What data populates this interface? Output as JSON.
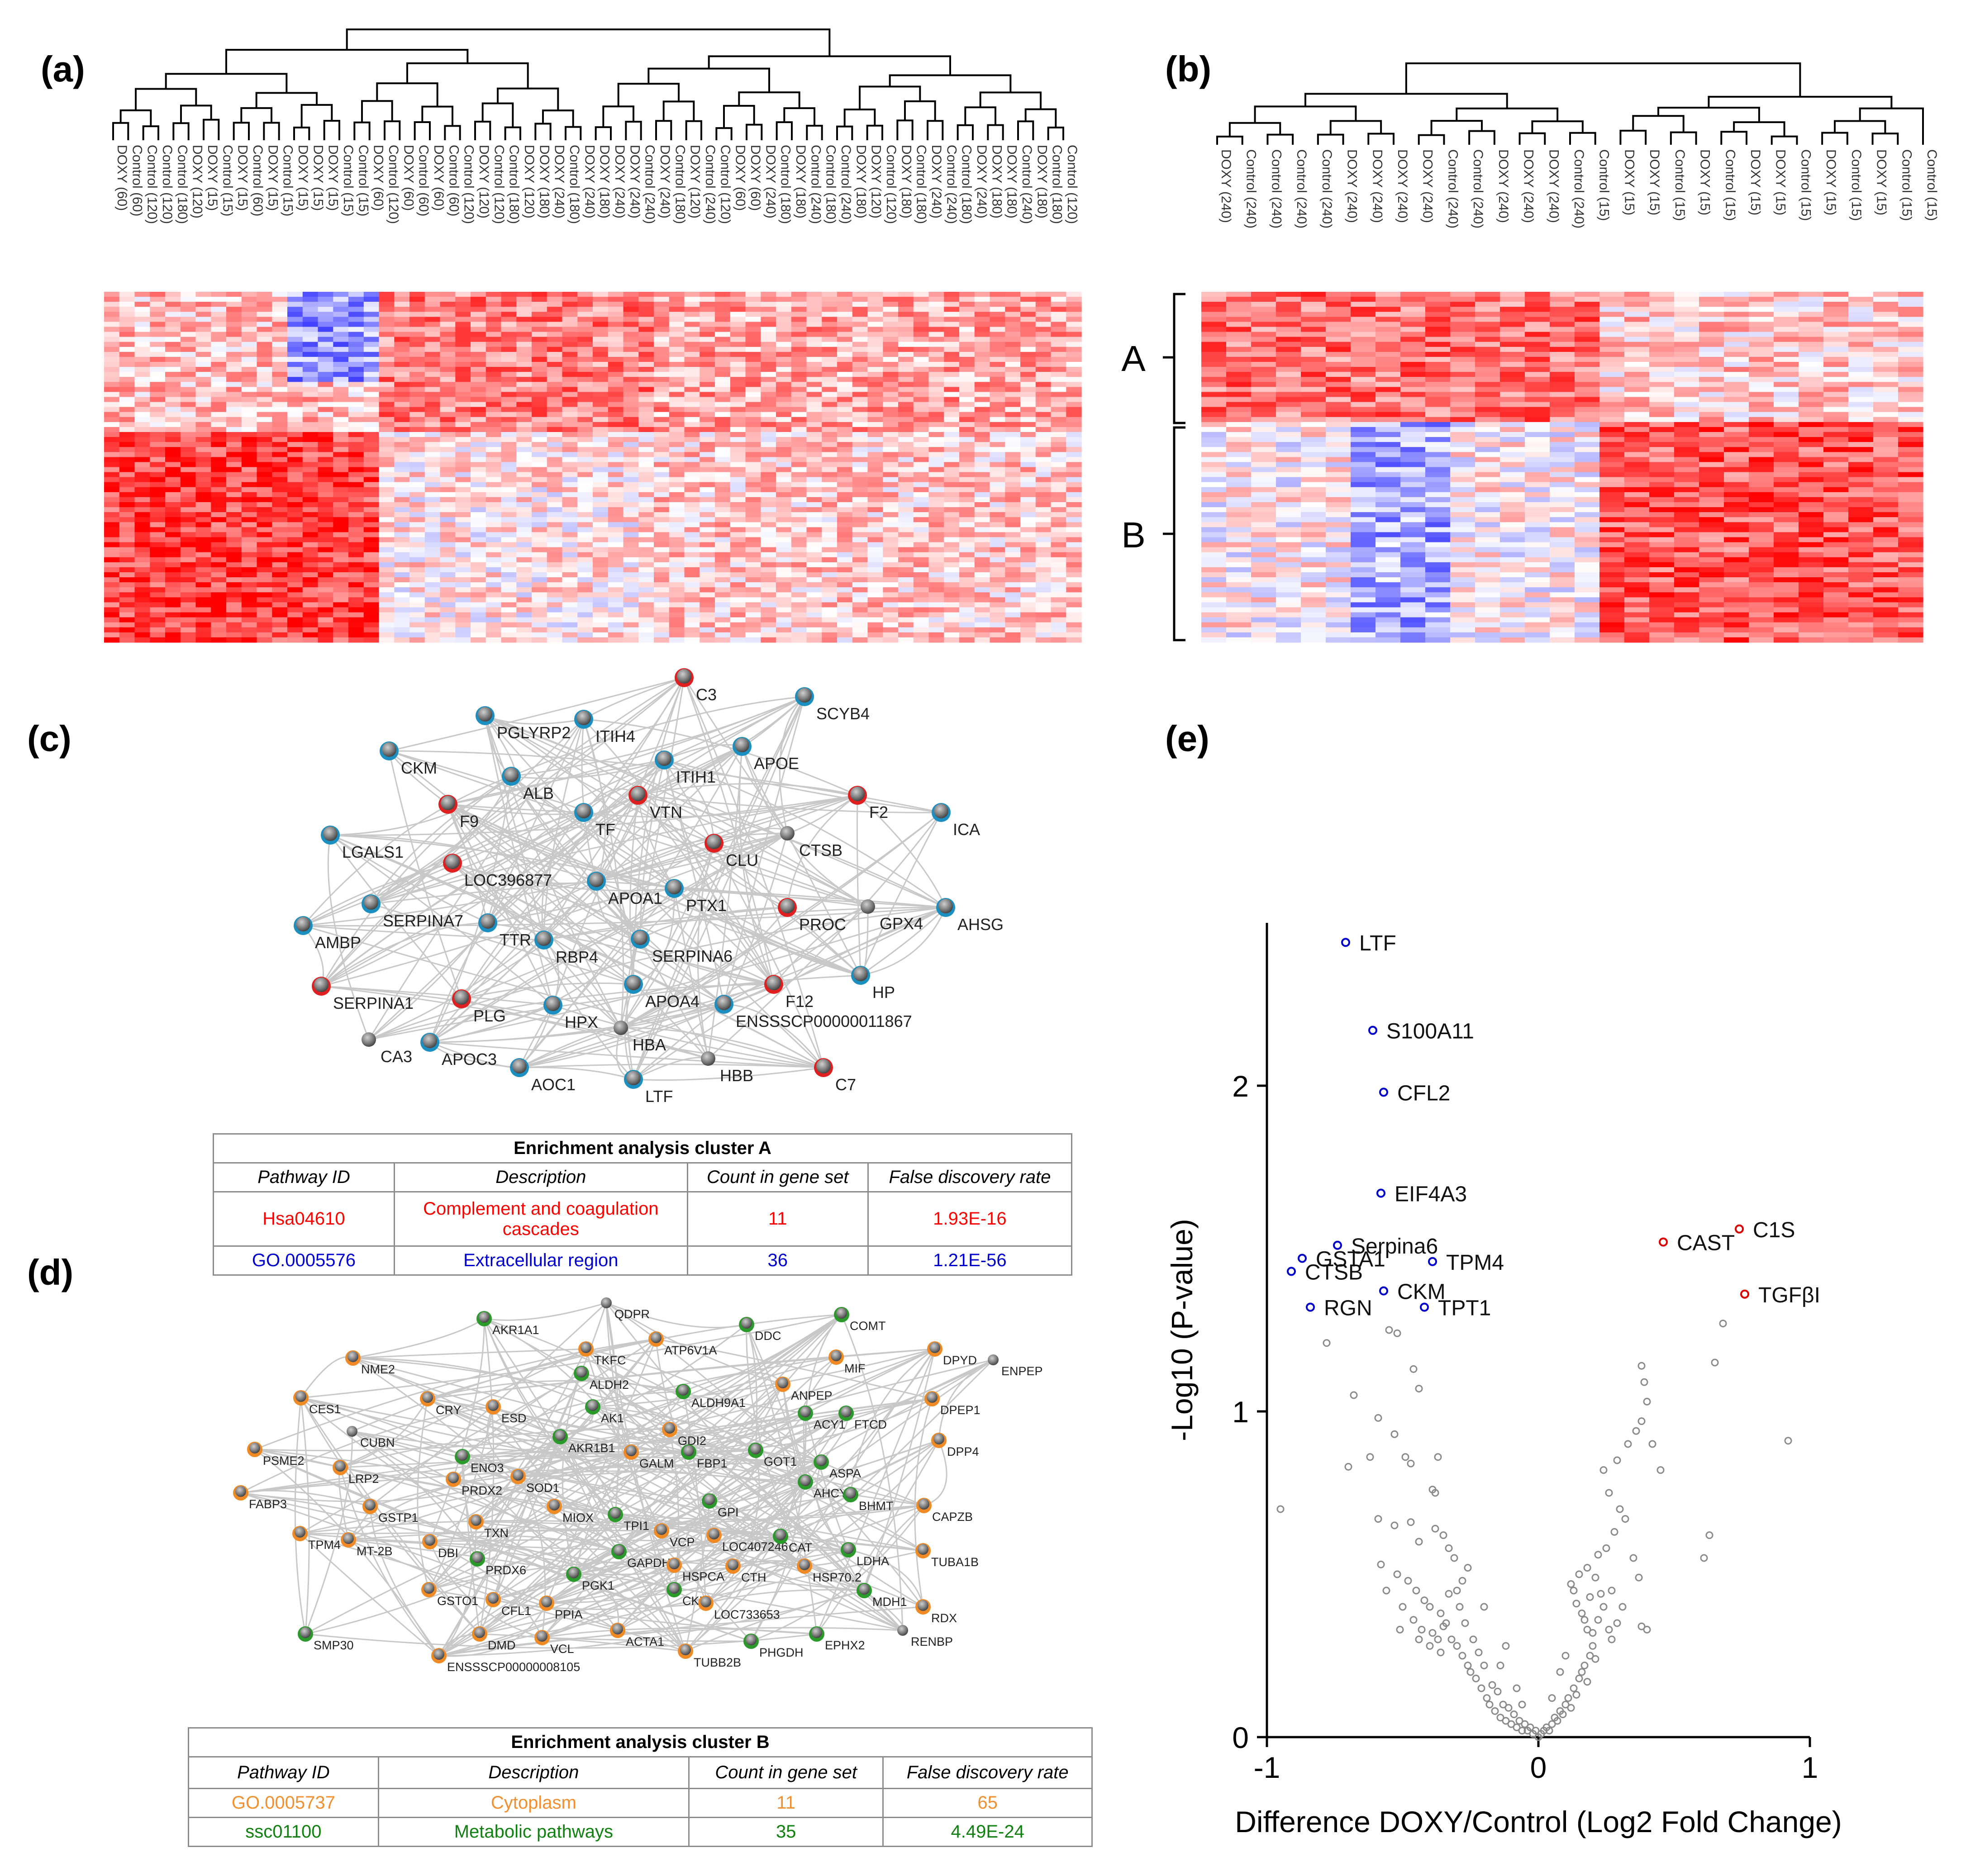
{
  "panels": {
    "a": {
      "label": "(a)"
    },
    "b": {
      "label": "(b)",
      "cluster_labels": [
        "A",
        "B"
      ]
    },
    "c": {
      "label": "(c)"
    },
    "d": {
      "label": "(d)"
    },
    "e": {
      "label": "(e)"
    }
  },
  "dendro_a_leaves": [
    "DOXY (60)",
    "Control (60)",
    "Control (120)",
    "Control (120)",
    "Control (180)",
    "DOXY (120)",
    "DOXY (15)",
    "Control (15)",
    "DOXY (15)",
    "Control (60)",
    "DOXY (15)",
    "Control (15)",
    "DOXY (15)",
    "DOXY (15)",
    "DOXY (15)",
    "Control (15)",
    "Control (15)",
    "DOXY (60)",
    "Control (120)",
    "DOXY (60)",
    "Control (60)",
    "DOXY (60)",
    "Control (60)",
    "Control (120)",
    "DOXY (120)",
    "Control (120)",
    "Control (180)",
    "DOXY (120)",
    "DOXY (180)",
    "DOXY (240)",
    "Control (180)",
    "DOXY (240)",
    "DOXY (180)",
    "DOXY (240)",
    "DOXY (240)",
    "Control (240)",
    "DOXY (240)",
    "Control (180)",
    "DOXY (120)",
    "Control (240)",
    "Control (120)",
    "DOXY (60)",
    "DOXY (60)",
    "DOXY (240)",
    "Control (180)",
    "DOXY (180)",
    "Control (240)",
    "Control (180)",
    "Control (240)",
    "DOXY (180)",
    "DOXY (120)",
    "Control (120)",
    "DOXY (180)",
    "Control (180)",
    "DOXY (240)",
    "Control (240)",
    "Control (180)",
    "DOXY (240)",
    "DOXY (180)",
    "DOXY (180)",
    "Control (240)",
    "DOXY (180)",
    "Control (180)",
    "Control (120)"
  ],
  "dendro_b_leaves": [
    "DOXY (240)",
    "Control (240)",
    "Control (240)",
    "Control (240)",
    "Control (240)",
    "DOXY (240)",
    "DOXY (240)",
    "DOXY (240)",
    "DOXY (240)",
    "Control (240)",
    "Control (240)",
    "DOXY (240)",
    "DOXY (240)",
    "DOXY (240)",
    "Control (240)",
    "Control (15)",
    "DOXY (15)",
    "DOXY (15)",
    "Control (15)",
    "DOXY (15)",
    "Control (15)",
    "DOXY (15)",
    "DOXY (15)",
    "Control (15)",
    "DOXY (15)",
    "Control (15)",
    "DOXY (15)",
    "Control (15)",
    "Control (15)"
  ],
  "network_c": {
    "nodes": [
      {
        "id": "C3",
        "ring": "red"
      },
      {
        "id": "SCYB4",
        "ring": "blue"
      },
      {
        "id": "PGLYRP2",
        "ring": "blue"
      },
      {
        "id": "ITIH4",
        "ring": "blue"
      },
      {
        "id": "CKM",
        "ring": "blue"
      },
      {
        "id": "APOE",
        "ring": "blue"
      },
      {
        "id": "ITIH1",
        "ring": "blue"
      },
      {
        "id": "ALB",
        "ring": "blue"
      },
      {
        "id": "F9",
        "ring": "red"
      },
      {
        "id": "VTN",
        "ring": "red"
      },
      {
        "id": "TF",
        "ring": "blue"
      },
      {
        "id": "F2",
        "ring": "red"
      },
      {
        "id": "ICA",
        "ring": "blue"
      },
      {
        "id": "LGALS1",
        "ring": "blue"
      },
      {
        "id": "CTSB",
        "ring": "none"
      },
      {
        "id": "CLU",
        "ring": "red"
      },
      {
        "id": "LOC396877",
        "ring": "red"
      },
      {
        "id": "APOA1",
        "ring": "blue"
      },
      {
        "id": "PTX1",
        "ring": "blue"
      },
      {
        "id": "AMBP",
        "ring": "blue"
      },
      {
        "id": "SERPINA7",
        "ring": "blue"
      },
      {
        "id": "TTR",
        "ring": "blue"
      },
      {
        "id": "RBP4",
        "ring": "blue"
      },
      {
        "id": "SERPINA6",
        "ring": "blue"
      },
      {
        "id": "PROC",
        "ring": "red"
      },
      {
        "id": "GPX4",
        "ring": "none"
      },
      {
        "id": "AHSG",
        "ring": "blue"
      },
      {
        "id": "SERPINA1",
        "ring": "red"
      },
      {
        "id": "PLG",
        "ring": "red"
      },
      {
        "id": "HPX",
        "ring": "blue"
      },
      {
        "id": "APOA4",
        "ring": "blue"
      },
      {
        "id": "F12",
        "ring": "red"
      },
      {
        "id": "HP",
        "ring": "blue"
      },
      {
        "id": "HBA",
        "ring": "none"
      },
      {
        "id": "ENSSSCP00000011867",
        "ring": "blue"
      },
      {
        "id": "CA3",
        "ring": "none"
      },
      {
        "id": "APOC3",
        "ring": "blue"
      },
      {
        "id": "HBB",
        "ring": "none"
      },
      {
        "id": "AOC1",
        "ring": "blue"
      },
      {
        "id": "LTF",
        "ring": "blue"
      },
      {
        "id": "C7",
        "ring": "red"
      }
    ]
  },
  "network_d": {
    "nodes": [
      {
        "id": "AKR1A1",
        "ring": "green"
      },
      {
        "id": "QDPR",
        "ring": "none"
      },
      {
        "id": "DDC",
        "ring": "green"
      },
      {
        "id": "COMT",
        "ring": "green"
      },
      {
        "id": "TKFC",
        "ring": "orange"
      },
      {
        "id": "ATP6V1A",
        "ring": "orange"
      },
      {
        "id": "MIF",
        "ring": "orange"
      },
      {
        "id": "DPYD",
        "ring": "orange"
      },
      {
        "id": "NME2",
        "ring": "orange"
      },
      {
        "id": "ALDH2",
        "ring": "green"
      },
      {
        "id": "ENPEP",
        "ring": "none"
      },
      {
        "id": "ALDH9A1",
        "ring": "green"
      },
      {
        "id": "ANPEP",
        "ring": "orange"
      },
      {
        "id": "DPEP1",
        "ring": "orange"
      },
      {
        "id": "CES1",
        "ring": "orange"
      },
      {
        "id": "CRY",
        "ring": "orange"
      },
      {
        "id": "ESD",
        "ring": "orange"
      },
      {
        "id": "AK1",
        "ring": "green"
      },
      {
        "id": "ACY1",
        "ring": "green"
      },
      {
        "id": "FTCD",
        "ring": "green"
      },
      {
        "id": "CUBN",
        "ring": "none"
      },
      {
        "id": "GDI2",
        "ring": "orange"
      },
      {
        "id": "PSME2",
        "ring": "orange"
      },
      {
        "id": "AKR1B1",
        "ring": "green"
      },
      {
        "id": "DPP4",
        "ring": "orange"
      },
      {
        "id": "ENO3",
        "ring": "green"
      },
      {
        "id": "GALM",
        "ring": "orange"
      },
      {
        "id": "FBP1",
        "ring": "green"
      },
      {
        "id": "GOT1",
        "ring": "green"
      },
      {
        "id": "ASPA",
        "ring": "green"
      },
      {
        "id": "LRP2",
        "ring": "orange"
      },
      {
        "id": "FABP3",
        "ring": "orange"
      },
      {
        "id": "PRDX2",
        "ring": "orange"
      },
      {
        "id": "SOD1",
        "ring": "orange"
      },
      {
        "id": "AHCY",
        "ring": "green"
      },
      {
        "id": "BHMT",
        "ring": "green"
      },
      {
        "id": "CAPZB",
        "ring": "orange"
      },
      {
        "id": "GSTP1",
        "ring": "orange"
      },
      {
        "id": "GPI",
        "ring": "green"
      },
      {
        "id": "MIOX",
        "ring": "orange"
      },
      {
        "id": "LOC407246",
        "ring": "orange"
      },
      {
        "id": "TPM4",
        "ring": "orange"
      },
      {
        "id": "TXN",
        "ring": "orange"
      },
      {
        "id": "TPI1",
        "ring": "green"
      },
      {
        "id": "VCP",
        "ring": "orange"
      },
      {
        "id": "CAT",
        "ring": "green"
      },
      {
        "id": "LDHA",
        "ring": "green"
      },
      {
        "id": "TUBA1B",
        "ring": "orange"
      },
      {
        "id": "MT-2B",
        "ring": "orange"
      },
      {
        "id": "DBI",
        "ring": "orange"
      },
      {
        "id": "PRDX6",
        "ring": "green"
      },
      {
        "id": "GAPDH",
        "ring": "green"
      },
      {
        "id": "HSPCA",
        "ring": "orange"
      },
      {
        "id": "CTH",
        "ring": "orange"
      },
      {
        "id": "HSP70.2",
        "ring": "orange"
      },
      {
        "id": "PGK1",
        "ring": "green"
      },
      {
        "id": "CKB",
        "ring": "green"
      },
      {
        "id": "LOC733653",
        "ring": "orange"
      },
      {
        "id": "MDH1",
        "ring": "green"
      },
      {
        "id": "RDX",
        "ring": "orange"
      },
      {
        "id": "GSTO1",
        "ring": "orange"
      },
      {
        "id": "CFL1",
        "ring": "orange"
      },
      {
        "id": "PPIA",
        "ring": "orange"
      },
      {
        "id": "RENBP",
        "ring": "none"
      },
      {
        "id": "DMD",
        "ring": "orange"
      },
      {
        "id": "VCL",
        "ring": "orange"
      },
      {
        "id": "ACTA1",
        "ring": "orange"
      },
      {
        "id": "PHGDH",
        "ring": "green"
      },
      {
        "id": "EPHX2",
        "ring": "green"
      },
      {
        "id": "SMP30",
        "ring": "green"
      },
      {
        "id": "ENSSSCP00000008105",
        "ring": "orange"
      },
      {
        "id": "TUBB2B",
        "ring": "orange"
      }
    ]
  },
  "table_a": {
    "caption": "Enrichment analysis cluster A",
    "headers": [
      "Pathway ID",
      "Description",
      "Count in gene set",
      "False discovery rate"
    ],
    "rows": [
      {
        "cells": [
          "Hsa04610",
          "Complement and coagulation cascades",
          "11",
          "1.93E-16"
        ],
        "color": "#ff0000"
      },
      {
        "cells": [
          "GO.0005576",
          "Extracellular region",
          "36",
          "1.21E-56"
        ],
        "color": "#0000d0"
      }
    ]
  },
  "table_b": {
    "caption": "Enrichment analysis cluster B",
    "headers": [
      "Pathway ID",
      "Description",
      "Count in gene set",
      "False discovery rate"
    ],
    "rows": [
      {
        "cells": [
          "GO.0005737",
          "Cytoplasm",
          "11",
          "65"
        ],
        "color": "#f09030"
      },
      {
        "cells": [
          "ssc01100",
          "Metabolic pathways",
          "35",
          "4.49E-24"
        ],
        "color": "#108010"
      }
    ]
  },
  "chart_data": {
    "type": "scatter",
    "title": "",
    "xlabel": "Difference DOXY/Control (Log2 Fold Change)",
    "ylabel": "-Log10 (P-value)",
    "xlim": [
      -1,
      1
    ],
    "ylim": [
      0,
      2.5
    ],
    "xticks": [
      "-1",
      "0",
      "1"
    ],
    "yticks": [
      "0",
      "1",
      "2"
    ],
    "labeled_points": [
      {
        "label": "LTF",
        "x": -0.71,
        "y": 2.44,
        "color": "#0000cc"
      },
      {
        "label": "S100A11",
        "x": -0.61,
        "y": 2.17,
        "color": "#0000cc"
      },
      {
        "label": "CFL2",
        "x": -0.57,
        "y": 1.98,
        "color": "#0000cc"
      },
      {
        "label": "EIF4A3",
        "x": -0.58,
        "y": 1.67,
        "color": "#0000cc"
      },
      {
        "label": "Serpina6",
        "x": -0.74,
        "y": 1.51,
        "color": "#0000cc"
      },
      {
        "label": "GSTA1",
        "x": -0.87,
        "y": 1.47,
        "color": "#0000cc"
      },
      {
        "label": "CTSB",
        "x": -0.91,
        "y": 1.43,
        "color": "#0000cc"
      },
      {
        "label": "TPM4",
        "x": -0.39,
        "y": 1.46,
        "color": "#0000cc"
      },
      {
        "label": "CKM",
        "x": -0.57,
        "y": 1.37,
        "color": "#0000cc"
      },
      {
        "label": "RGN",
        "x": -0.84,
        "y": 1.32,
        "color": "#0000cc"
      },
      {
        "label": "TPT1",
        "x": -0.42,
        "y": 1.32,
        "color": "#0000cc"
      },
      {
        "label": "C1S",
        "x": 0.74,
        "y": 1.56,
        "color": "#dd0000"
      },
      {
        "label": "CAST",
        "x": 0.46,
        "y": 1.52,
        "color": "#dd0000"
      },
      {
        "label": "TGFβI",
        "x": 0.76,
        "y": 1.36,
        "color": "#dd0000"
      }
    ],
    "other_points": [
      [
        -0.95,
        0.7
      ],
      [
        -0.78,
        1.21
      ],
      [
        -0.68,
        1.05
      ],
      [
        -0.59,
        0.98
      ],
      [
        -0.55,
        1.25
      ],
      [
        -0.52,
        1.24
      ],
      [
        -0.46,
        1.13
      ],
      [
        -0.44,
        1.07
      ],
      [
        -0.7,
        0.83
      ],
      [
        -0.62,
        0.86
      ],
      [
        -0.53,
        0.93
      ],
      [
        -0.49,
        0.86
      ],
      [
        -0.47,
        0.84
      ],
      [
        -0.37,
        0.86
      ],
      [
        -0.39,
        0.76
      ],
      [
        -0.38,
        0.75
      ],
      [
        -0.59,
        0.67
      ],
      [
        -0.53,
        0.65
      ],
      [
        -0.47,
        0.66
      ],
      [
        -0.44,
        0.6
      ],
      [
        -0.38,
        0.64
      ],
      [
        -0.35,
        0.62
      ],
      [
        -0.33,
        0.58
      ],
      [
        -0.31,
        0.55
      ],
      [
        -0.58,
        0.53
      ],
      [
        -0.52,
        0.5
      ],
      [
        -0.48,
        0.48
      ],
      [
        -0.45,
        0.45
      ],
      [
        -0.42,
        0.42
      ],
      [
        -0.4,
        0.4
      ],
      [
        -0.36,
        0.38
      ],
      [
        -0.34,
        0.35
      ],
      [
        -0.56,
        0.45
      ],
      [
        -0.5,
        0.4
      ],
      [
        -0.46,
        0.36
      ],
      [
        -0.43,
        0.33
      ],
      [
        -0.39,
        0.32
      ],
      [
        -0.37,
        0.3
      ],
      [
        -0.35,
        0.34
      ],
      [
        -0.32,
        0.3
      ],
      [
        -0.51,
        0.33
      ],
      [
        -0.44,
        0.3
      ],
      [
        -0.4,
        0.28
      ],
      [
        -0.36,
        0.26
      ],
      [
        -0.3,
        0.28
      ],
      [
        -0.28,
        0.25
      ],
      [
        -0.26,
        0.22
      ],
      [
        -0.24,
        0.3
      ],
      [
        -0.29,
        0.4
      ],
      [
        -0.27,
        0.35
      ],
      [
        -0.25,
        0.2
      ],
      [
        -0.23,
        0.18
      ],
      [
        -0.21,
        0.15
      ],
      [
        -0.2,
        0.22
      ],
      [
        -0.19,
        0.12
      ],
      [
        -0.18,
        0.1
      ],
      [
        -0.22,
        0.26
      ],
      [
        -0.17,
        0.16
      ],
      [
        -0.16,
        0.08
      ],
      [
        -0.15,
        0.14
      ],
      [
        -0.14,
        0.06
      ],
      [
        -0.13,
        0.1
      ],
      [
        -0.12,
        0.05
      ],
      [
        -0.11,
        0.09
      ],
      [
        -0.1,
        0.04
      ],
      [
        -0.09,
        0.07
      ],
      [
        -0.08,
        0.03
      ],
      [
        -0.07,
        0.05
      ],
      [
        -0.06,
        0.02
      ],
      [
        -0.05,
        0.04
      ],
      [
        -0.04,
        0.02
      ],
      [
        -0.03,
        0.03
      ],
      [
        -0.02,
        0.01
      ],
      [
        -0.01,
        0.02
      ],
      [
        0.0,
        0.0
      ],
      [
        0.01,
        0.01
      ],
      [
        0.02,
        0.02
      ],
      [
        0.03,
        0.03
      ],
      [
        0.04,
        0.02
      ],
      [
        0.05,
        0.04
      ],
      [
        0.06,
        0.06
      ],
      [
        0.07,
        0.05
      ],
      [
        0.08,
        0.08
      ],
      [
        0.09,
        0.07
      ],
      [
        0.1,
        0.1
      ],
      [
        0.11,
        0.12
      ],
      [
        0.12,
        0.09
      ],
      [
        0.13,
        0.15
      ],
      [
        0.14,
        0.13
      ],
      [
        0.15,
        0.18
      ],
      [
        0.16,
        0.2
      ],
      [
        0.17,
        0.22
      ],
      [
        0.18,
        0.17
      ],
      [
        0.19,
        0.25
      ],
      [
        0.2,
        0.28
      ],
      [
        0.21,
        0.24
      ],
      [
        0.12,
        0.47
      ],
      [
        0.13,
        0.45
      ],
      [
        0.14,
        0.41
      ],
      [
        0.16,
        0.38
      ],
      [
        0.17,
        0.36
      ],
      [
        0.18,
        0.33
      ],
      [
        0.2,
        0.32
      ],
      [
        0.22,
        0.36
      ],
      [
        0.15,
        0.5
      ],
      [
        0.18,
        0.52
      ],
      [
        0.21,
        0.49
      ],
      [
        0.23,
        0.44
      ],
      [
        0.24,
        0.4
      ],
      [
        0.26,
        0.33
      ],
      [
        0.27,
        0.3
      ],
      [
        0.29,
        0.35
      ],
      [
        0.25,
        0.58
      ],
      [
        0.28,
        0.63
      ],
      [
        0.3,
        0.7
      ],
      [
        0.26,
        0.75
      ],
      [
        0.32,
        0.67
      ],
      [
        0.35,
        0.55
      ],
      [
        0.37,
        0.49
      ],
      [
        0.38,
        0.34
      ],
      [
        0.24,
        0.82
      ],
      [
        0.29,
        0.85
      ],
      [
        0.33,
        0.9
      ],
      [
        0.36,
        0.94
      ],
      [
        0.38,
        0.97
      ],
      [
        0.4,
        1.03
      ],
      [
        0.42,
        0.9
      ],
      [
        0.45,
        0.82
      ],
      [
        0.39,
        1.09
      ],
      [
        0.38,
        1.14
      ],
      [
        0.63,
        0.62
      ],
      [
        0.65,
        1.15
      ],
      [
        0.68,
        1.27
      ],
      [
        0.61,
        0.55
      ],
      [
        0.92,
        0.91
      ],
      [
        0.4,
        0.33
      ],
      [
        -0.12,
        0.28
      ],
      [
        -0.14,
        0.22
      ],
      [
        -0.08,
        0.15
      ],
      [
        -0.06,
        0.1
      ],
      [
        0.05,
        0.12
      ],
      [
        0.08,
        0.2
      ],
      [
        0.1,
        0.25
      ],
      [
        -0.2,
        0.4
      ],
      [
        -0.3,
        0.45
      ],
      [
        -0.26,
        0.52
      ],
      [
        -0.28,
        0.48
      ],
      [
        0.19,
        0.43
      ],
      [
        0.22,
        0.56
      ],
      [
        0.27,
        0.45
      ],
      [
        0.31,
        0.4
      ],
      [
        -0.33,
        0.44
      ]
    ]
  }
}
